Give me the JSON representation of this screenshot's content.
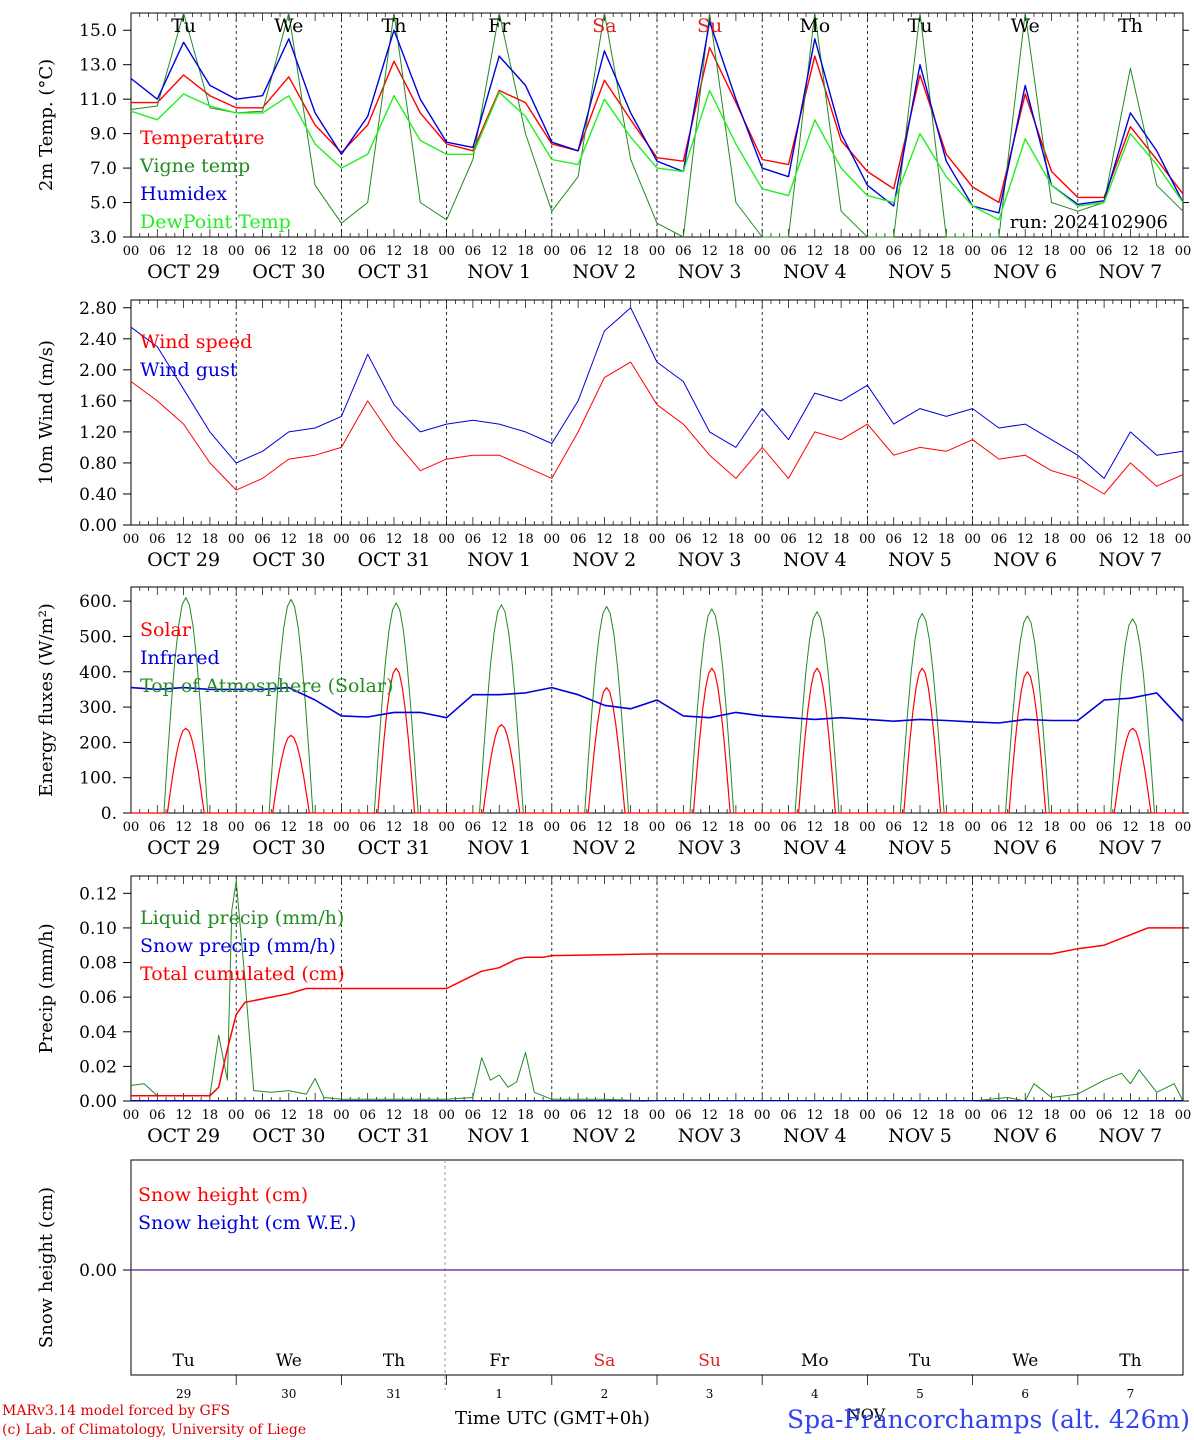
{
  "days": [
    {
      "abbr": "Tu",
      "color": "#000000",
      "date": "OCT 29",
      "num": "29"
    },
    {
      "abbr": "We",
      "color": "#000000",
      "date": "OCT 30",
      "num": "30"
    },
    {
      "abbr": "Th",
      "color": "#000000",
      "date": "OCT 31",
      "num": "31"
    },
    {
      "abbr": "Fr",
      "color": "#000000",
      "date": "NOV  1",
      "num": "1"
    },
    {
      "abbr": "Sa",
      "color": "#e02020",
      "date": "NOV  2",
      "num": "2"
    },
    {
      "abbr": "Su",
      "color": "#e02020",
      "date": "NOV  3",
      "num": "3"
    },
    {
      "abbr": "Mo",
      "color": "#000000",
      "date": "NOV  4",
      "num": "4"
    },
    {
      "abbr": "Tu",
      "color": "#000000",
      "date": "NOV  5",
      "num": "5"
    },
    {
      "abbr": "We",
      "color": "#000000",
      "date": "NOV  6",
      "num": "6"
    },
    {
      "abbr": "Th",
      "color": "#000000",
      "date": "NOV  7",
      "num": "7"
    }
  ],
  "hour_ticks": [
    "00",
    "06",
    "12",
    "18"
  ],
  "footer": {
    "model": "MARv3.14 model forced by GFS",
    "lab": "(c) Lab. of Climatology, University of Liege",
    "time": "Time UTC (GMT+0h)",
    "month": "NOV",
    "station": "Spa-Francorchamps (alt. 426m)"
  },
  "chart_data": [
    {
      "type": "line",
      "ylabel": "2m Temp. (°C)",
      "ylim": [
        3,
        16
      ],
      "yticks": [
        "3.0",
        "5.0",
        "7.0",
        "9.0",
        "11.0",
        "13.0",
        "15.0"
      ],
      "run": "run: 2024102906",
      "x_hours": [
        0,
        6,
        12,
        18,
        24,
        30,
        36,
        42,
        48,
        54,
        60,
        66,
        72,
        78,
        84,
        90,
        96,
        102,
        108,
        114,
        120,
        126,
        132,
        138,
        144,
        150,
        156,
        162,
        168,
        174,
        180,
        186,
        192,
        198,
        204,
        210,
        216,
        222,
        228,
        234,
        240
      ],
      "series": [
        {
          "name": "Temperature",
          "color": "#ff0000",
          "values": [
            10.8,
            10.8,
            12.4,
            11.2,
            10.5,
            10.5,
            12.3,
            9.5,
            7.9,
            9.5,
            13.2,
            10.2,
            8.4,
            8.0,
            11.5,
            10.8,
            8.4,
            8.0,
            12.1,
            9.8,
            7.6,
            7.4,
            14.0,
            10.8,
            7.5,
            7.2,
            13.5,
            8.6,
            6.8,
            5.8,
            12.4,
            7.8,
            5.9,
            5.0,
            11.3,
            6.8,
            5.3,
            5.3,
            9.4,
            7.5,
            5.5
          ]
        },
        {
          "name": "Vigne temp",
          "color": "#228b22",
          "values": [
            10.4,
            10.6,
            16.0,
            10.5,
            10.2,
            10.3,
            16.0,
            6.0,
            3.8,
            5.0,
            16.0,
            5.0,
            4.0,
            7.5,
            16.0,
            9.0,
            4.5,
            6.5,
            16.0,
            7.5,
            3.8,
            3.0,
            16.0,
            5.0,
            1.5,
            2.0,
            16.0,
            4.5,
            0.0,
            0.0,
            16.0,
            3.0,
            0.0,
            1.0,
            16.0,
            5.0,
            4.5,
            5.0,
            12.8,
            6.0,
            4.5
          ]
        },
        {
          "name": "Humidex",
          "color": "#0000dd",
          "values": [
            12.2,
            11.0,
            14.3,
            11.8,
            11.0,
            11.2,
            14.5,
            10.2,
            7.8,
            10.0,
            15.0,
            11.0,
            8.5,
            8.2,
            13.5,
            11.8,
            8.5,
            8.0,
            13.8,
            10.2,
            7.4,
            6.8,
            15.5,
            11.0,
            7.0,
            6.5,
            14.5,
            9.0,
            6.0,
            4.8,
            13.0,
            7.4,
            4.8,
            4.4,
            11.8,
            6.0,
            4.9,
            5.1,
            10.2,
            8.0,
            5.0
          ]
        },
        {
          "name": "DewPoint Temp",
          "color": "#22ee22",
          "values": [
            10.3,
            9.8,
            11.3,
            10.6,
            10.2,
            10.2,
            11.2,
            8.4,
            7.0,
            7.8,
            11.2,
            8.6,
            7.8,
            7.8,
            11.4,
            10.0,
            7.5,
            7.2,
            11.0,
            8.8,
            7.0,
            6.8,
            11.5,
            8.4,
            5.8,
            5.4,
            9.8,
            7.0,
            5.4,
            5.0,
            9.0,
            6.5,
            4.8,
            4.0,
            8.7,
            6.0,
            4.8,
            5.0,
            9.0,
            7.2,
            5.0
          ]
        }
      ]
    },
    {
      "type": "line",
      "ylabel": "10m Wind (m/s)",
      "ylim": [
        0,
        2.9
      ],
      "yticks": [
        "0.00",
        "0.40",
        "0.80",
        "1.20",
        "1.60",
        "2.00",
        "2.40",
        "2.80"
      ],
      "x_hours": [
        0,
        6,
        12,
        18,
        24,
        30,
        36,
        42,
        48,
        54,
        60,
        66,
        72,
        78,
        84,
        90,
        96,
        102,
        108,
        114,
        120,
        126,
        132,
        138,
        144,
        150,
        156,
        162,
        168,
        174,
        180,
        186,
        192,
        198,
        204,
        210,
        216,
        222,
        228,
        234,
        240
      ],
      "series": [
        {
          "name": "Wind speed",
          "color": "#ff0000",
          "values": [
            1.85,
            1.6,
            1.3,
            0.8,
            0.45,
            0.6,
            0.85,
            0.9,
            1.0,
            1.6,
            1.1,
            0.7,
            0.85,
            0.9,
            0.9,
            0.75,
            0.6,
            1.2,
            1.9,
            2.1,
            1.55,
            1.3,
            0.9,
            0.6,
            1.0,
            0.6,
            1.2,
            1.1,
            1.3,
            0.9,
            1.0,
            0.95,
            1.1,
            0.85,
            0.9,
            0.7,
            0.6,
            0.4,
            0.8,
            0.5,
            0.65
          ]
        },
        {
          "name": "Wind gust",
          "color": "#0000dd",
          "values": [
            2.55,
            2.3,
            1.75,
            1.2,
            0.8,
            0.95,
            1.2,
            1.25,
            1.4,
            2.2,
            1.55,
            1.2,
            1.3,
            1.35,
            1.3,
            1.2,
            1.05,
            1.6,
            2.5,
            2.8,
            2.1,
            1.85,
            1.2,
            1.0,
            1.5,
            1.1,
            1.7,
            1.6,
            1.8,
            1.3,
            1.5,
            1.4,
            1.5,
            1.25,
            1.3,
            1.1,
            0.9,
            0.6,
            1.2,
            0.9,
            0.95
          ]
        }
      ]
    },
    {
      "type": "line",
      "ylabel": "Energy fluxes (W/m²)",
      "ylim": [
        0,
        640
      ],
      "yticks": [
        "0.",
        "100.",
        "200.",
        "300.",
        "400.",
        "500.",
        "600."
      ],
      "daily_peak_hour": 12.5,
      "series": [
        {
          "name": "Solar",
          "color": "#ff0000",
          "daily_peaks": [
            240,
            220,
            410,
            250,
            355,
            410,
            410,
            410,
            400,
            240
          ]
        },
        {
          "name": "Infrared",
          "color": "#0000dd",
          "x_hours": [
            0,
            6,
            12,
            18,
            24,
            30,
            36,
            42,
            48,
            54,
            60,
            66,
            72,
            78,
            84,
            90,
            96,
            102,
            108,
            114,
            120,
            126,
            132,
            138,
            144,
            150,
            156,
            162,
            168,
            174,
            180,
            186,
            192,
            198,
            204,
            210,
            216,
            222,
            228,
            234,
            240
          ],
          "values": [
            355,
            350,
            355,
            350,
            350,
            350,
            355,
            320,
            275,
            272,
            285,
            285,
            270,
            335,
            335,
            340,
            355,
            335,
            305,
            295,
            320,
            275,
            270,
            285,
            275,
            270,
            265,
            270,
            265,
            260,
            265,
            262,
            258,
            255,
            265,
            262,
            262,
            320,
            325,
            340,
            260
          ]
        },
        {
          "name": "Top of Atmosphere (Solar)",
          "color": "#228b22",
          "daily_peaks": [
            610,
            605,
            595,
            590,
            585,
            578,
            570,
            565,
            558,
            550
          ]
        }
      ]
    },
    {
      "type": "line",
      "ylabel": "Precip (mm/h)",
      "ylim": [
        0,
        0.13
      ],
      "yticks": [
        "0.00",
        "0.02",
        "0.04",
        "0.06",
        "0.08",
        "0.10",
        "0.12"
      ],
      "series": [
        {
          "name": "Liquid precip (mm/h)",
          "color": "#228b22",
          "x_hours": [
            0,
            3,
            6,
            12,
            18,
            20,
            22,
            23,
            24,
            26,
            28,
            32,
            36,
            40,
            42,
            44,
            48,
            60,
            72,
            78,
            80,
            82,
            84,
            86,
            88,
            90,
            92,
            96,
            100,
            108,
            120,
            150,
            180,
            192,
            200,
            204,
            206,
            210,
            216,
            222,
            226,
            228,
            230,
            234,
            238,
            240
          ],
          "values": [
            0.009,
            0.01,
            0.003,
            0.003,
            0.003,
            0.038,
            0.012,
            0.11,
            0.127,
            0.07,
            0.006,
            0.005,
            0.006,
            0.004,
            0.013,
            0.002,
            0.001,
            0.001,
            0.001,
            0.002,
            0.025,
            0.012,
            0.015,
            0.008,
            0.011,
            0.028,
            0.005,
            0.001,
            0.001,
            0.001,
            0.0,
            0.0,
            0.0,
            0.0,
            0.002,
            0.0,
            0.01,
            0.002,
            0.004,
            0.012,
            0.016,
            0.01,
            0.018,
            0.005,
            0.01,
            0.0
          ]
        },
        {
          "name": "Snow precip (mm/h)",
          "color": "#0000dd",
          "values": [
            0
          ]
        },
        {
          "name": "Total cumulated (cm)",
          "color": "#ff0000",
          "x_hours": [
            0,
            6,
            12,
            18,
            20,
            22,
            24,
            26,
            30,
            36,
            40,
            48,
            60,
            72,
            76,
            80,
            84,
            88,
            90,
            94,
            96,
            120,
            150,
            180,
            210,
            216,
            222,
            228,
            232,
            240
          ],
          "values": [
            0.003,
            0.003,
            0.003,
            0.003,
            0.008,
            0.03,
            0.05,
            0.057,
            0.059,
            0.062,
            0.065,
            0.065,
            0.065,
            0.065,
            0.07,
            0.075,
            0.077,
            0.082,
            0.083,
            0.083,
            0.084,
            0.085,
            0.085,
            0.085,
            0.085,
            0.088,
            0.09,
            0.096,
            0.1,
            0.1
          ]
        }
      ]
    },
    {
      "type": "line",
      "ylabel": "Snow height (cm)",
      "yticks": [
        "0.00"
      ],
      "series": [
        {
          "name": "Snow height (cm)",
          "color": "#ff0000",
          "values": [
            0,
            0
          ]
        },
        {
          "name": "Snow height (cm W.E.)",
          "color": "#0000dd",
          "values": [
            0,
            0
          ]
        }
      ]
    }
  ]
}
